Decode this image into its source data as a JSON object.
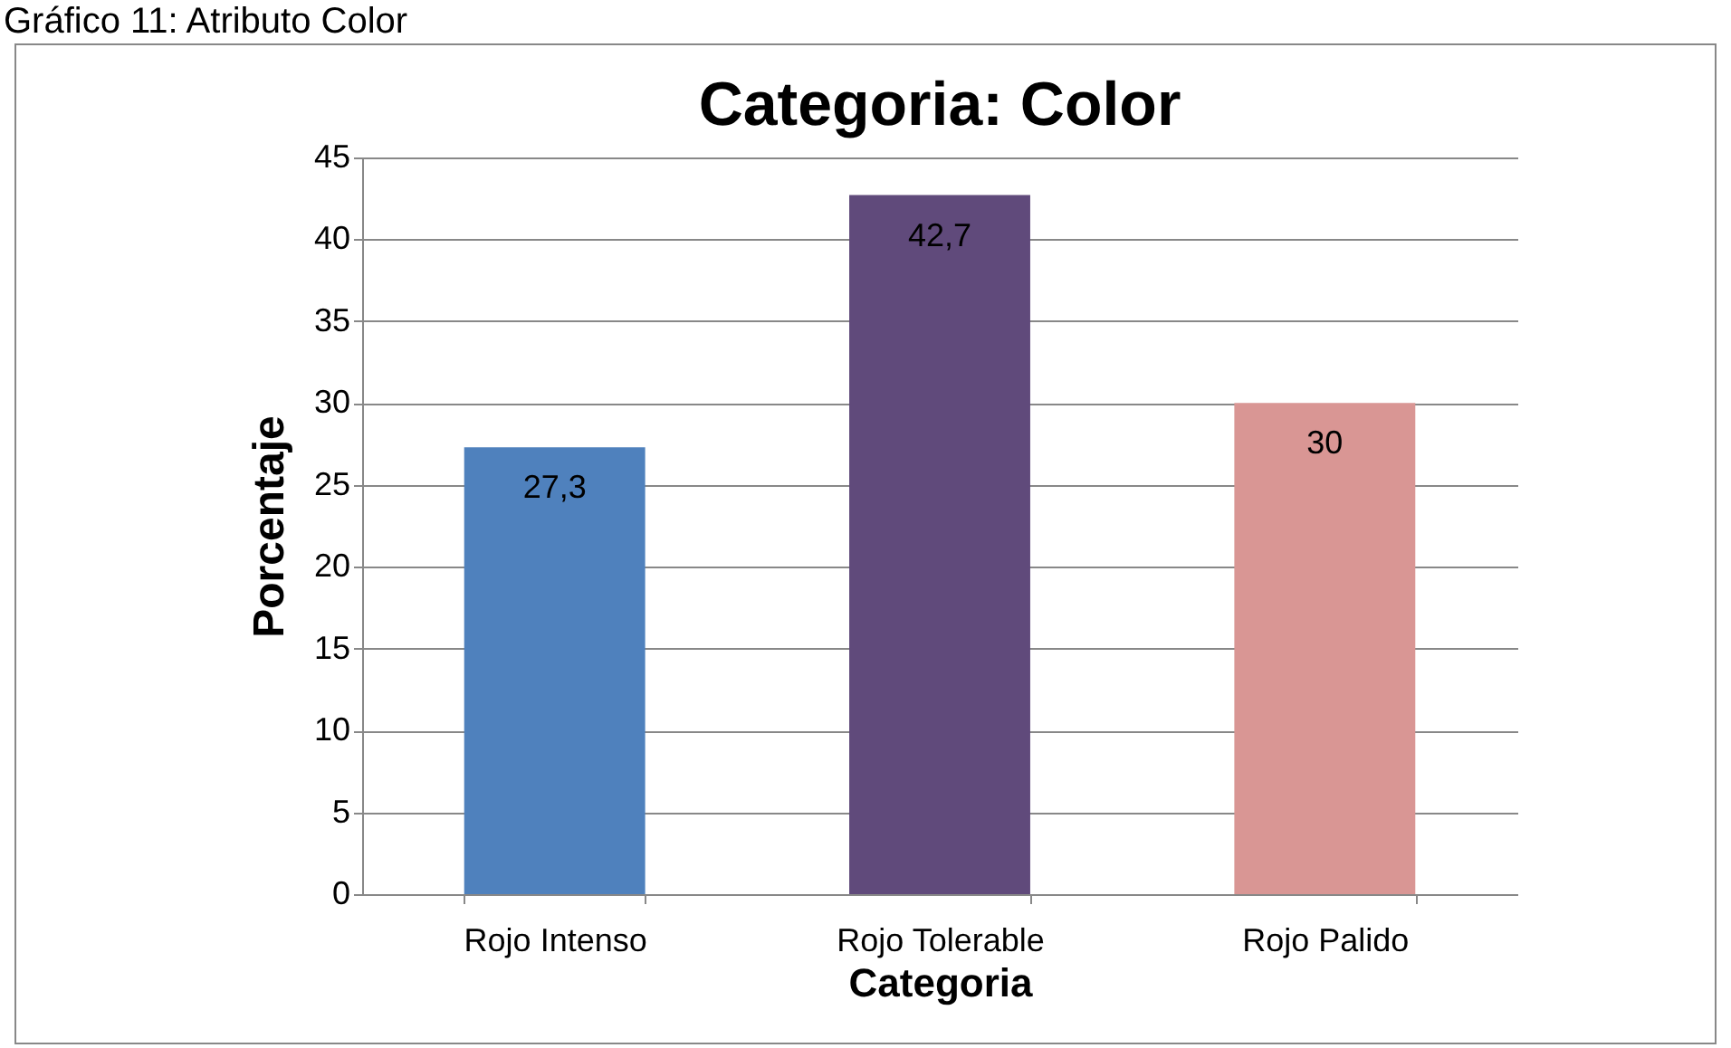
{
  "chart_data": {
    "type": "bar",
    "title": "Categoria: Color",
    "xlabel": "Categoria",
    "ylabel": "Porcentaje",
    "annotations": [
      "Gráfico 11: Atributo Color"
    ],
    "categories": [
      "Rojo Intenso",
      "Rojo Tolerable",
      "Rojo Palido"
    ],
    "values": [
      27.3,
      42.7,
      30
    ],
    "value_labels": [
      "27,3",
      "42,7",
      "30"
    ],
    "colors": [
      "#4f81bd",
      "#604a7b",
      "#d99694"
    ],
    "ylim": [
      0,
      45
    ],
    "yticks": [
      0,
      5,
      10,
      15,
      20,
      25,
      30,
      35,
      40,
      45
    ],
    "grid": "y",
    "legend": false
  }
}
